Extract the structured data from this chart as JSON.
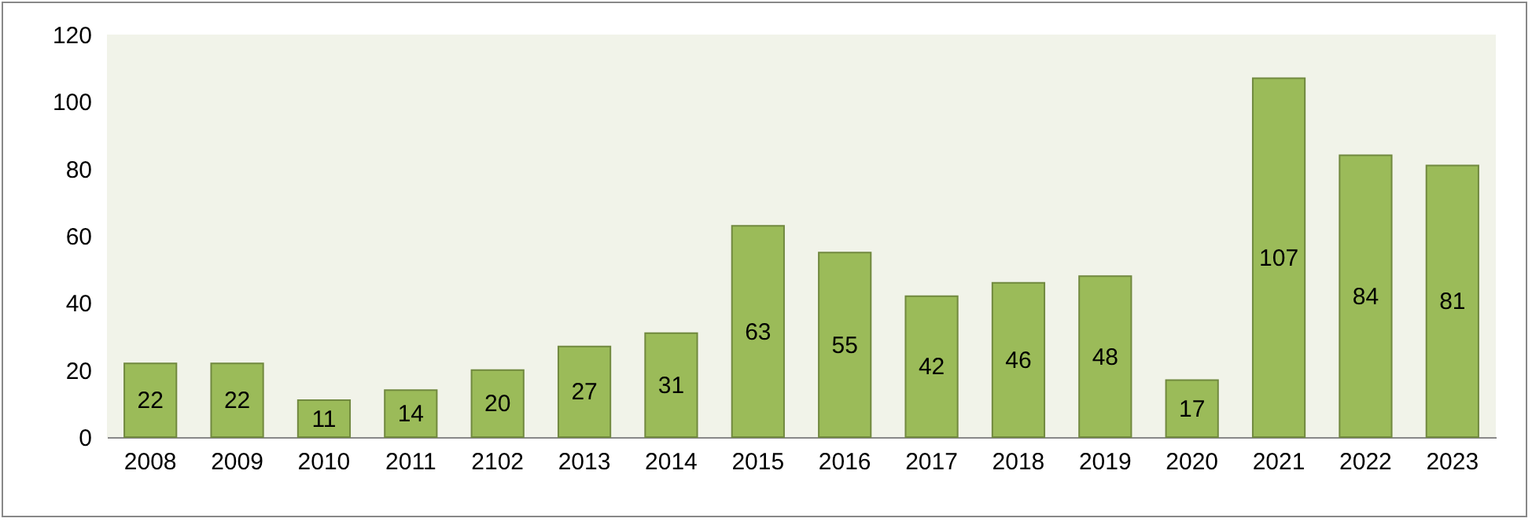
{
  "chart_data": {
    "type": "bar",
    "categories": [
      "2008",
      "2009",
      "2010",
      "2011",
      "2102",
      "2013",
      "2014",
      "2015",
      "2016",
      "2017",
      "2018",
      "2019",
      "2020",
      "2021",
      "2022",
      "2023"
    ],
    "values": [
      22,
      22,
      11,
      14,
      20,
      27,
      31,
      63,
      55,
      42,
      46,
      48,
      17,
      107,
      84,
      81
    ],
    "color": "#9bbb59",
    "ylim": [
      0,
      120
    ],
    "yticks": [
      0,
      20,
      40,
      60,
      80,
      100,
      120
    ],
    "grid": false,
    "data_labels": true
  }
}
